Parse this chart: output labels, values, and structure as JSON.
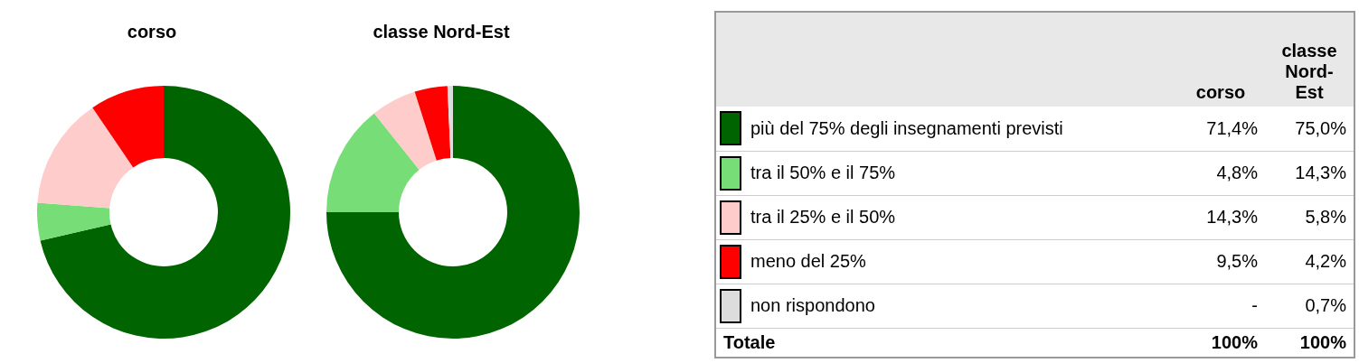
{
  "chart_data": {
    "type": "donut",
    "categories": [
      "più del 75% degli insegnamenti previsti",
      "tra il 50% e il 75%",
      "tra il 25% e il 50%",
      "meno del 25%",
      "non rispondono"
    ],
    "colors": [
      "#006400",
      "#77dd77",
      "#ffcccc",
      "#ff0000",
      "#dddddd"
    ],
    "series": [
      {
        "name": "corso",
        "values": [
          71.4,
          4.8,
          14.3,
          9.5,
          null
        ],
        "value_labels": [
          "71,4%",
          "4,8%",
          "14,3%",
          "9,5%",
          "-"
        ]
      },
      {
        "name": "classe Nord-Est",
        "values": [
          75.0,
          14.3,
          5.8,
          4.2,
          0.7
        ],
        "value_labels": [
          "75,0%",
          "14,3%",
          "5,8%",
          "4,2%",
          "0,7%"
        ]
      }
    ],
    "totals": [
      "100%",
      "100%"
    ],
    "legend": "right",
    "annotations": [
      "Totale"
    ]
  }
}
